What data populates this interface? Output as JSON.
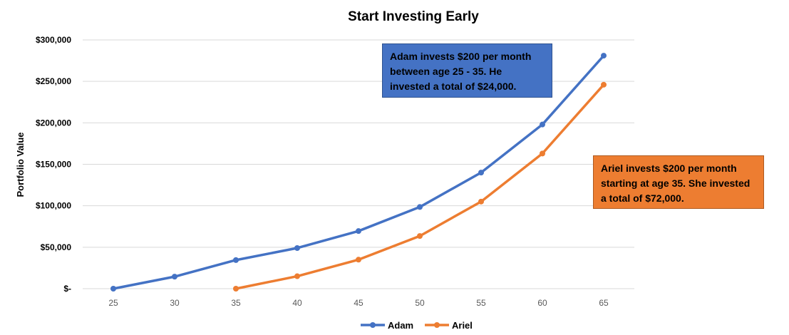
{
  "chart_data": {
    "type": "line",
    "title": "Start Investing Early",
    "xlabel": "",
    "ylabel": "Portfolio Value",
    "x": [
      25,
      30,
      35,
      40,
      45,
      50,
      55,
      60,
      65
    ],
    "x_tick_labels": [
      "25",
      "30",
      "35",
      "40",
      "45",
      "50",
      "55",
      "60",
      "65"
    ],
    "y_tick_labels": [
      "$-",
      "$50,000",
      "$100,000",
      "$150,000",
      "$200,000",
      "$250,000",
      "$300,000"
    ],
    "ylim": [
      0,
      300000
    ],
    "y_ticks": [
      0,
      50000,
      100000,
      150000,
      200000,
      250000,
      300000
    ],
    "grid": true,
    "legend_position": "bottom",
    "series": [
      {
        "name": "Adam",
        "color": "#4472C4",
        "values": [
          0,
          14500,
          34500,
          49000,
          69500,
          98500,
          140000,
          198000,
          281000
        ]
      },
      {
        "name": "Ariel",
        "color": "#ED7D31",
        "values": [
          null,
          null,
          0,
          15000,
          35000,
          63500,
          105000,
          163000,
          246000
        ]
      }
    ],
    "annotations": [
      {
        "id": "adam",
        "text": "Adam invests $200 per month between age 25 - 35. He invested a total of $24,000.",
        "color": "#4472C4"
      },
      {
        "id": "ariel",
        "text": "Ariel invests $200 per month starting at age 35. She invested a total of $72,000.",
        "color": "#ED7D31"
      }
    ]
  }
}
